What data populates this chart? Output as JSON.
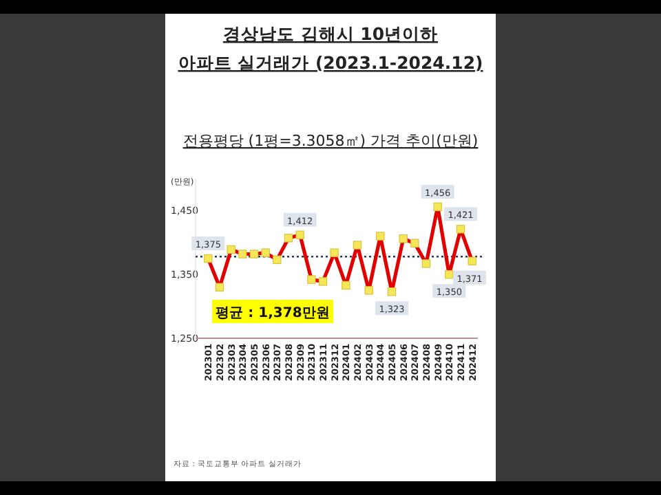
{
  "chart_data": {
    "type": "line",
    "title": "경상남도 김해시 10년이하\n아파트 실거래가 (2023.1-2024.12)",
    "subtitle": "전용평당 (1평=3.3058㎡) 가격 추이(만원)",
    "ylabel": "(만원)",
    "categories": [
      "202301",
      "202302",
      "202303",
      "202304",
      "202305",
      "202306",
      "202307",
      "202308",
      "202309",
      "202310",
      "202311",
      "202312",
      "202401",
      "202402",
      "202403",
      "202404",
      "202405",
      "202406",
      "202407",
      "202408",
      "202409",
      "202410",
      "202411",
      "202412"
    ],
    "series": [
      {
        "color": "#e00000",
        "values": [
          1375,
          1330,
          1389,
          1382,
          1382,
          1384,
          1373,
          1407,
          1412,
          1342,
          1339,
          1384,
          1333,
          1396,
          1325,
          1410,
          1323,
          1406,
          1399,
          1367,
          1456,
          1350,
          1421,
          1371
        ],
        "value_labels": [
          "1,375",
          null,
          null,
          null,
          null,
          null,
          null,
          null,
          "1,412",
          null,
          null,
          null,
          null,
          null,
          null,
          null,
          "1,323",
          null,
          null,
          null,
          "1,456",
          "1,350",
          "1,421",
          "1,371"
        ]
      }
    ],
    "ylim": [
      1250,
      1500
    ],
    "yticks": [
      {
        "value": 1250,
        "label": "1,250"
      },
      {
        "value": 1350,
        "label": "1,350"
      },
      {
        "value": 1450,
        "label": "1,450"
      }
    ],
    "grid": false,
    "marker": "square",
    "line_style": "solid",
    "ref_lines": [
      {
        "axis": "y",
        "value": 1378,
        "color": "#1f3864",
        "line_style": "dotted"
      }
    ],
    "annotations": [
      "평균 : 1,378만원",
      "자료 : 국토교통부 아파트 실거래가"
    ]
  }
}
